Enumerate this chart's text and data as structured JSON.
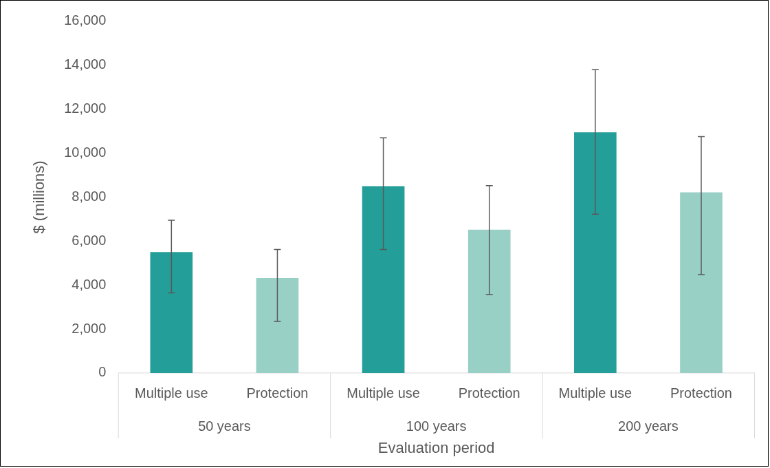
{
  "chart_data": {
    "type": "bar",
    "xlabel": "Evaluation period",
    "ylabel": "$ (millions)",
    "categories": [
      "50 years",
      "100 years",
      "200 years"
    ],
    "series": [
      {
        "name": "Multiple use",
        "color": "#239e98",
        "values": [
          5500,
          8500,
          10950
        ],
        "errors": [
          [
            3650,
            6950
          ],
          [
            5620,
            10700
          ],
          [
            7220,
            13800
          ]
        ]
      },
      {
        "name": "Protection",
        "color": "#98d0c6",
        "values": [
          4320,
          6520,
          8220
        ],
        "errors": [
          [
            2350,
            5620
          ],
          [
            3570,
            8520
          ],
          [
            4480,
            10750
          ]
        ]
      }
    ],
    "ylim": [
      0,
      16000
    ],
    "yticks": [
      0,
      {
        "value": 2000,
        "label": "2,000"
      },
      {
        "value": 4000,
        "label": "4,000"
      },
      {
        "value": 6000,
        "label": "6,000"
      },
      {
        "value": 8000,
        "label": "8,000"
      },
      {
        "value": 10000,
        "label": "10,000"
      },
      {
        "value": 12000,
        "label": "12,000"
      },
      {
        "value": 14000,
        "label": "14,000"
      },
      {
        "value": 16000,
        "label": "16,000"
      }
    ]
  }
}
